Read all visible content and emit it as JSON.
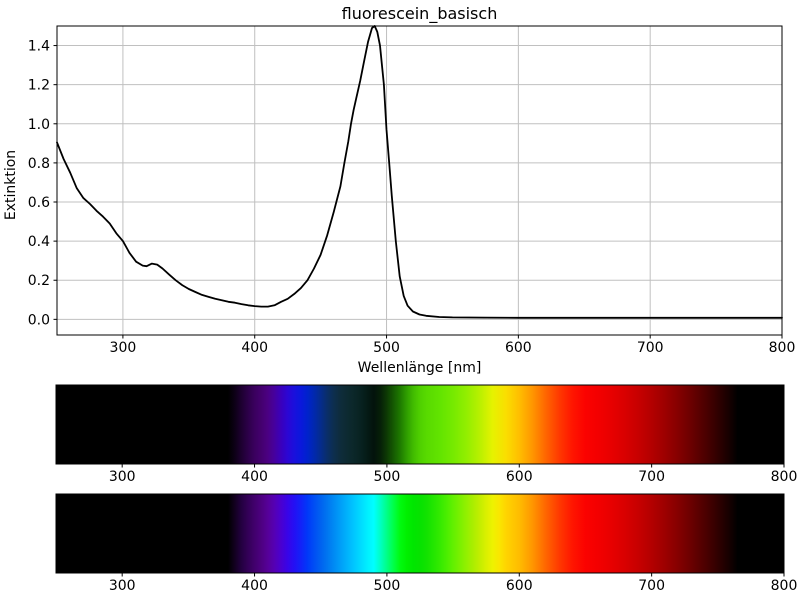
{
  "figure": {
    "background": "#ffffff",
    "text_color": "#000000",
    "grid_color": "#c0c0c0",
    "spine_color": "#000000"
  },
  "chart_data": [
    {
      "type": "line",
      "title": "fluorescein_basisch",
      "xlabel": "Wellenlänge [nm]",
      "ylabel": "Extinktion",
      "xlim": [
        250,
        800
      ],
      "ylim": [
        -0.08,
        1.5
      ],
      "xticks": [
        300,
        400,
        500,
        600,
        700,
        800
      ],
      "yticks": [
        0.0,
        0.2,
        0.4,
        0.6,
        0.8,
        1.0,
        1.2,
        1.4
      ],
      "ytick_labels": [
        "0.0",
        "0.2",
        "0.4",
        "0.6",
        "0.8",
        "1.0",
        "1.2",
        "1.4"
      ],
      "grid": true,
      "legend": "none",
      "line_color": "#000000",
      "line_width": 1.8,
      "series": [
        {
          "name": "extinction",
          "x": [
            250,
            255,
            260,
            265,
            270,
            275,
            280,
            285,
            290,
            295,
            300,
            305,
            310,
            315,
            318,
            322,
            326,
            330,
            335,
            340,
            345,
            350,
            355,
            360,
            365,
            370,
            375,
            380,
            385,
            390,
            395,
            400,
            405,
            410,
            415,
            420,
            425,
            430,
            435,
            440,
            445,
            450,
            455,
            460,
            465,
            468,
            471,
            473,
            475,
            477,
            480,
            483,
            486,
            489,
            491,
            493,
            495,
            498,
            500,
            502,
            504,
            507,
            510,
            513,
            516,
            520,
            525,
            530,
            540,
            550,
            575,
            600,
            650,
            700,
            750,
            800
          ],
          "y": [
            0.905,
            0.82,
            0.75,
            0.67,
            0.62,
            0.59,
            0.555,
            0.525,
            0.49,
            0.44,
            0.4,
            0.34,
            0.295,
            0.275,
            0.272,
            0.285,
            0.28,
            0.26,
            0.23,
            0.2,
            0.175,
            0.155,
            0.14,
            0.125,
            0.115,
            0.105,
            0.098,
            0.09,
            0.085,
            0.078,
            0.072,
            0.068,
            0.065,
            0.065,
            0.072,
            0.09,
            0.105,
            0.13,
            0.16,
            0.2,
            0.26,
            0.33,
            0.43,
            0.55,
            0.68,
            0.8,
            0.91,
            1.0,
            1.07,
            1.13,
            1.22,
            1.32,
            1.42,
            1.49,
            1.5,
            1.47,
            1.4,
            1.2,
            0.97,
            0.8,
            0.63,
            0.4,
            0.22,
            0.12,
            0.07,
            0.04,
            0.025,
            0.018,
            0.012,
            0.01,
            0.009,
            0.008,
            0.008,
            0.008,
            0.008,
            0.008
          ]
        }
      ]
    },
    {
      "type": "heatmap",
      "name": "transmitted-spectrum-strip",
      "xlim": [
        250,
        800
      ],
      "xticks": [
        300,
        400,
        500,
        600,
        700,
        800
      ],
      "stops": [
        {
          "nm": 250,
          "color": "#000000"
        },
        {
          "nm": 380,
          "color": "#000000"
        },
        {
          "nm": 385,
          "color": "#0d0016"
        },
        {
          "nm": 390,
          "color": "#1d0030"
        },
        {
          "nm": 395,
          "color": "#2c0048"
        },
        {
          "nm": 400,
          "color": "#3a005e"
        },
        {
          "nm": 405,
          "color": "#44006e"
        },
        {
          "nm": 410,
          "color": "#4b0082"
        },
        {
          "nm": 415,
          "color": "#46009e"
        },
        {
          "nm": 420,
          "color": "#3a00bc"
        },
        {
          "nm": 425,
          "color": "#2b06d4"
        },
        {
          "nm": 430,
          "color": "#1a10dc"
        },
        {
          "nm": 435,
          "color": "#0a18dc"
        },
        {
          "nm": 440,
          "color": "#0022cc"
        },
        {
          "nm": 445,
          "color": "#0128ae"
        },
        {
          "nm": 450,
          "color": "#052c8c"
        },
        {
          "nm": 455,
          "color": "#0a2e68"
        },
        {
          "nm": 460,
          "color": "#0d2e4d"
        },
        {
          "nm": 465,
          "color": "#0e2c3b"
        },
        {
          "nm": 470,
          "color": "#0d2a31"
        },
        {
          "nm": 475,
          "color": "#0b2729"
        },
        {
          "nm": 480,
          "color": "#082221"
        },
        {
          "nm": 485,
          "color": "#051b16"
        },
        {
          "nm": 490,
          "color": "#03130c"
        },
        {
          "nm": 495,
          "color": "#061f08"
        },
        {
          "nm": 500,
          "color": "#0d3a04"
        },
        {
          "nm": 505,
          "color": "#155a02"
        },
        {
          "nm": 510,
          "color": "#1e7a00"
        },
        {
          "nm": 515,
          "color": "#2f9e00"
        },
        {
          "nm": 520,
          "color": "#41bc00"
        },
        {
          "nm": 525,
          "color": "#4fd000"
        },
        {
          "nm": 530,
          "color": "#58da00"
        },
        {
          "nm": 540,
          "color": "#62e400"
        },
        {
          "nm": 550,
          "color": "#76ea00"
        },
        {
          "nm": 560,
          "color": "#92ee00"
        },
        {
          "nm": 570,
          "color": "#b8f000"
        },
        {
          "nm": 580,
          "color": "#e6f200"
        },
        {
          "nm": 590,
          "color": "#fade00"
        },
        {
          "nm": 600,
          "color": "#ffbe00"
        },
        {
          "nm": 610,
          "color": "#ff9600"
        },
        {
          "nm": 620,
          "color": "#ff6600"
        },
        {
          "nm": 630,
          "color": "#ff3a00"
        },
        {
          "nm": 640,
          "color": "#ff1600"
        },
        {
          "nm": 650,
          "color": "#fb0200"
        },
        {
          "nm": 660,
          "color": "#f30000"
        },
        {
          "nm": 670,
          "color": "#e70000"
        },
        {
          "nm": 680,
          "color": "#d80000"
        },
        {
          "nm": 690,
          "color": "#c70000"
        },
        {
          "nm": 700,
          "color": "#b30000"
        },
        {
          "nm": 710,
          "color": "#9d0000"
        },
        {
          "nm": 720,
          "color": "#850000"
        },
        {
          "nm": 730,
          "color": "#6a0000"
        },
        {
          "nm": 740,
          "color": "#4e0000"
        },
        {
          "nm": 750,
          "color": "#300000"
        },
        {
          "nm": 758,
          "color": "#180000"
        },
        {
          "nm": 765,
          "color": "#000000"
        },
        {
          "nm": 800,
          "color": "#000000"
        }
      ]
    },
    {
      "type": "heatmap",
      "name": "reference-spectrum-strip",
      "xlim": [
        250,
        800
      ],
      "xticks": [
        300,
        400,
        500,
        600,
        700,
        800
      ],
      "stops": [
        {
          "nm": 250,
          "color": "#000000"
        },
        {
          "nm": 380,
          "color": "#000000"
        },
        {
          "nm": 385,
          "color": "#12001f"
        },
        {
          "nm": 390,
          "color": "#230040"
        },
        {
          "nm": 395,
          "color": "#330057"
        },
        {
          "nm": 400,
          "color": "#41006c"
        },
        {
          "nm": 405,
          "color": "#4d0080"
        },
        {
          "nm": 410,
          "color": "#560098"
        },
        {
          "nm": 415,
          "color": "#5500b4"
        },
        {
          "nm": 420,
          "color": "#4a00d0"
        },
        {
          "nm": 425,
          "color": "#3804e8"
        },
        {
          "nm": 430,
          "color": "#2410f4"
        },
        {
          "nm": 435,
          "color": "#1222f8"
        },
        {
          "nm": 440,
          "color": "#0038f8"
        },
        {
          "nm": 445,
          "color": "#004ef4"
        },
        {
          "nm": 450,
          "color": "#0062f0"
        },
        {
          "nm": 455,
          "color": "#0076f0"
        },
        {
          "nm": 460,
          "color": "#008af4"
        },
        {
          "nm": 465,
          "color": "#009ef8"
        },
        {
          "nm": 470,
          "color": "#00b2fc"
        },
        {
          "nm": 475,
          "color": "#00c6ff"
        },
        {
          "nm": 480,
          "color": "#00daff"
        },
        {
          "nm": 485,
          "color": "#00eeff"
        },
        {
          "nm": 490,
          "color": "#00ffff"
        },
        {
          "nm": 495,
          "color": "#00ffc4"
        },
        {
          "nm": 500,
          "color": "#00ff86"
        },
        {
          "nm": 505,
          "color": "#00ff48"
        },
        {
          "nm": 510,
          "color": "#00fa10"
        },
        {
          "nm": 515,
          "color": "#00f000"
        },
        {
          "nm": 520,
          "color": "#00e600"
        },
        {
          "nm": 525,
          "color": "#06e200"
        },
        {
          "nm": 530,
          "color": "#12e200"
        },
        {
          "nm": 535,
          "color": "#22e600"
        },
        {
          "nm": 540,
          "color": "#34ea00"
        },
        {
          "nm": 545,
          "color": "#4aee00"
        },
        {
          "nm": 550,
          "color": "#62f000"
        },
        {
          "nm": 555,
          "color": "#7af000"
        },
        {
          "nm": 560,
          "color": "#92f000"
        },
        {
          "nm": 565,
          "color": "#aaee00"
        },
        {
          "nm": 570,
          "color": "#c2ee00"
        },
        {
          "nm": 575,
          "color": "#daf000"
        },
        {
          "nm": 580,
          "color": "#eef200"
        },
        {
          "nm": 585,
          "color": "#fae600"
        },
        {
          "nm": 590,
          "color": "#ffd400"
        },
        {
          "nm": 595,
          "color": "#ffc800"
        },
        {
          "nm": 600,
          "color": "#ffbc00"
        },
        {
          "nm": 610,
          "color": "#ff9600"
        },
        {
          "nm": 620,
          "color": "#ff6600"
        },
        {
          "nm": 630,
          "color": "#ff3a00"
        },
        {
          "nm": 640,
          "color": "#ff1600"
        },
        {
          "nm": 650,
          "color": "#fb0200"
        },
        {
          "nm": 660,
          "color": "#f30000"
        },
        {
          "nm": 670,
          "color": "#e70000"
        },
        {
          "nm": 680,
          "color": "#d80000"
        },
        {
          "nm": 690,
          "color": "#c70000"
        },
        {
          "nm": 700,
          "color": "#b30000"
        },
        {
          "nm": 710,
          "color": "#9d0000"
        },
        {
          "nm": 720,
          "color": "#850000"
        },
        {
          "nm": 730,
          "color": "#6a0000"
        },
        {
          "nm": 740,
          "color": "#4e0000"
        },
        {
          "nm": 750,
          "color": "#300000"
        },
        {
          "nm": 758,
          "color": "#180000"
        },
        {
          "nm": 765,
          "color": "#000000"
        },
        {
          "nm": 800,
          "color": "#000000"
        }
      ]
    }
  ]
}
